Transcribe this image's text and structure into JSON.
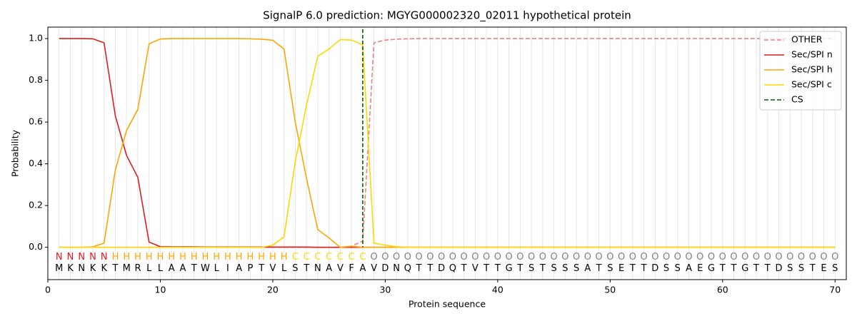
{
  "chart_data": {
    "type": "line",
    "title": "SignalP 6.0 prediction: MGYG000002320_02011 hypothetical protein",
    "xlabel": "Protein sequence",
    "ylabel": "Probability",
    "x": [
      1,
      2,
      3,
      4,
      5,
      6,
      7,
      8,
      9,
      10,
      11,
      12,
      13,
      14,
      15,
      16,
      17,
      18,
      19,
      20,
      21,
      22,
      23,
      24,
      25,
      26,
      27,
      28,
      29,
      30,
      31,
      32,
      33,
      34,
      35,
      36,
      37,
      38,
      39,
      40,
      41,
      42,
      43,
      44,
      45,
      46,
      47,
      48,
      49,
      50,
      51,
      52,
      53,
      54,
      55,
      56,
      57,
      58,
      59,
      60,
      61,
      62,
      63,
      64,
      65,
      66,
      67,
      68,
      69,
      70
    ],
    "sequence": [
      "M",
      "K",
      "N",
      "K",
      "K",
      "T",
      "M",
      "R",
      "L",
      "L",
      "A",
      "A",
      "T",
      "W",
      "L",
      "I",
      "A",
      "P",
      "T",
      "V",
      "L",
      "S",
      "T",
      "N",
      "A",
      "V",
      "F",
      "A",
      "V",
      "D",
      "N",
      "Q",
      "T",
      "T",
      "D",
      "Q",
      "T",
      "V",
      "T",
      "T",
      "G",
      "T",
      "S",
      "T",
      "S",
      "S",
      "S",
      "A",
      "T",
      "S",
      "E",
      "T",
      "T",
      "D",
      "S",
      "S",
      "A",
      "E",
      "G",
      "T",
      "T",
      "G",
      "T",
      "T",
      "D",
      "S",
      "S",
      "T",
      "E",
      "S"
    ],
    "labels": [
      "N",
      "N",
      "N",
      "N",
      "N",
      "H",
      "H",
      "H",
      "H",
      "H",
      "H",
      "H",
      "H",
      "H",
      "H",
      "H",
      "H",
      "H",
      "H",
      "H",
      "H",
      "C",
      "C",
      "C",
      "C",
      "C",
      "C",
      "C",
      "O",
      "O",
      "O",
      "O",
      "O",
      "O",
      "O",
      "O",
      "O",
      "O",
      "O",
      "O",
      "O",
      "O",
      "O",
      "O",
      "O",
      "O",
      "O",
      "O",
      "O",
      "O",
      "O",
      "O",
      "O",
      "O",
      "O",
      "O",
      "O",
      "O",
      "O",
      "O",
      "O",
      "O",
      "O",
      "O",
      "O",
      "O",
      "O",
      "O",
      "O",
      "O"
    ],
    "label_colors": {
      "N": "#e41a1c",
      "H": "#ffa500",
      "C": "#ffd700",
      "O": "#808080"
    },
    "series": [
      {
        "name": "OTHER",
        "color": "#f08080",
        "dash": true,
        "values": [
          0,
          0,
          0,
          0,
          0,
          0,
          0,
          0,
          0,
          0,
          0,
          0,
          0,
          0,
          0,
          0,
          0,
          0,
          0,
          0,
          0,
          0,
          0,
          0,
          0,
          0,
          0.005,
          0.03,
          0.98,
          0.993,
          0.997,
          0.999,
          1,
          1,
          1,
          1,
          1,
          1,
          1,
          1,
          1,
          1,
          1,
          1,
          1,
          1,
          1,
          1,
          1,
          1,
          1,
          1,
          1,
          1,
          1,
          1,
          1,
          1,
          1,
          1,
          1,
          1,
          1,
          1,
          1,
          1,
          1,
          1,
          1,
          1
        ]
      },
      {
        "name": "Sec/SPI n",
        "color": "#e41a1c",
        "values": [
          1,
          1,
          1,
          0.999,
          0.98,
          0.63,
          0.44,
          0.335,
          0.025,
          0.003,
          0.002,
          0.002,
          0.002,
          0.001,
          0.001,
          0.001,
          0.001,
          0.001,
          0.001,
          0.001,
          0.001,
          0.001,
          0.001,
          0,
          0,
          0,
          0,
          0,
          0,
          0,
          0,
          0,
          0,
          0,
          0,
          0,
          0,
          0,
          0,
          0,
          0,
          0,
          0,
          0,
          0,
          0,
          0,
          0,
          0,
          0,
          0,
          0,
          0,
          0,
          0,
          0,
          0,
          0,
          0,
          0,
          0,
          0,
          0,
          0,
          0,
          0,
          0,
          0,
          0,
          0
        ]
      },
      {
        "name": "Sec/SPI h",
        "color": "#ffa500",
        "values": [
          0,
          0,
          0,
          0.002,
          0.02,
          0.37,
          0.56,
          0.66,
          0.975,
          0.998,
          1,
          1,
          1,
          1,
          1,
          1,
          1,
          0.999,
          0.997,
          0.992,
          0.95,
          0.6,
          0.33,
          0.085,
          0.045,
          0,
          0.005,
          0,
          0,
          0,
          0,
          0,
          0,
          0,
          0,
          0,
          0,
          0,
          0,
          0,
          0,
          0,
          0,
          0,
          0,
          0,
          0,
          0,
          0,
          0,
          0,
          0,
          0,
          0,
          0,
          0,
          0,
          0,
          0,
          0,
          0,
          0,
          0,
          0,
          0,
          0,
          0,
          0,
          0,
          0
        ]
      },
      {
        "name": "Sec/SPI c",
        "color": "#ffd700",
        "values": [
          0,
          0,
          0,
          0,
          0,
          0,
          0,
          0,
          0,
          0,
          0,
          0,
          0,
          0,
          0,
          0,
          0,
          0,
          0,
          0.01,
          0.05,
          0.41,
          0.68,
          0.915,
          0.95,
          0.995,
          0.993,
          0.97,
          0.02,
          0.01,
          0.003,
          0,
          0,
          0,
          0,
          0,
          0,
          0,
          0,
          0,
          0,
          0,
          0,
          0,
          0,
          0,
          0,
          0,
          0,
          0,
          0,
          0,
          0,
          0,
          0,
          0,
          0,
          0,
          0,
          0,
          0,
          0,
          0,
          0,
          0,
          0,
          0,
          0,
          0,
          0
        ]
      }
    ],
    "cs": {
      "name": "CS",
      "color": "#006400",
      "x": 28
    },
    "xlim": [
      0,
      71
    ],
    "ylim": [
      -0.155,
      1.055
    ],
    "xticks": [
      0,
      10,
      20,
      30,
      40,
      50,
      60,
      70
    ],
    "yticks": [
      {
        "value": 0,
        "label": "0.0"
      },
      {
        "value": 0.2,
        "label": "0.2"
      },
      {
        "value": 0.4,
        "label": "0.4"
      },
      {
        "value": 0.6,
        "label": "0.6"
      },
      {
        "value": 0.8,
        "label": "0.8"
      },
      {
        "value": 1.0,
        "label": "1.0"
      }
    ],
    "grid": true,
    "legend": "upper right"
  }
}
